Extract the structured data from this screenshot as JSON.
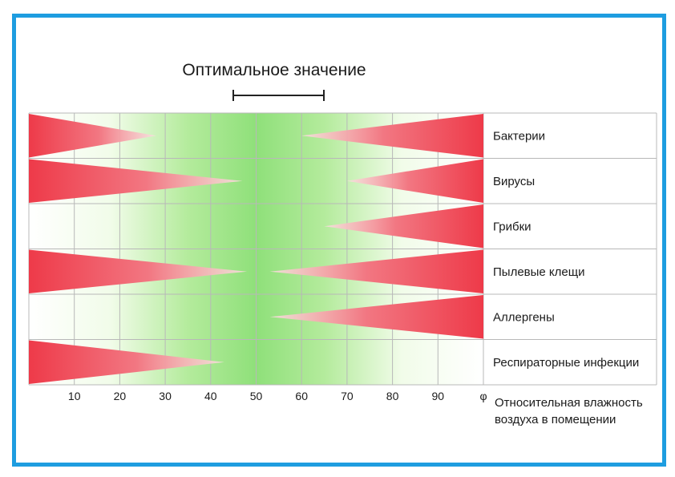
{
  "chart_data": {
    "type": "area",
    "title": "Оптимальное значение",
    "optimal_range": [
      45,
      65
    ],
    "x_ticks": [
      "10",
      "20",
      "30",
      "40",
      "50",
      "60",
      "70",
      "80",
      "90",
      "φ"
    ],
    "xlim": [
      0,
      100
    ],
    "xlabel_lines": [
      "Относительная влажность",
      "воздуха в помещении"
    ],
    "colors": {
      "hazard": "#f0404d",
      "optimal": "#8fe07a",
      "frame": "#1e9de0"
    },
    "rows": [
      {
        "label": "Бактерии",
        "left_to": 28,
        "right_from": 60
      },
      {
        "label": "Вирусы",
        "left_to": 47,
        "right_from": 70
      },
      {
        "label": "Грибки",
        "left_to": null,
        "right_from": 65
      },
      {
        "label": "Пылевые клещи",
        "left_to": 48,
        "right_from": 53
      },
      {
        "label": "Аллергены",
        "left_to": null,
        "right_from": 53
      },
      {
        "label": "Респираторные инфекции",
        "left_to": 43,
        "right_from": null
      }
    ]
  }
}
